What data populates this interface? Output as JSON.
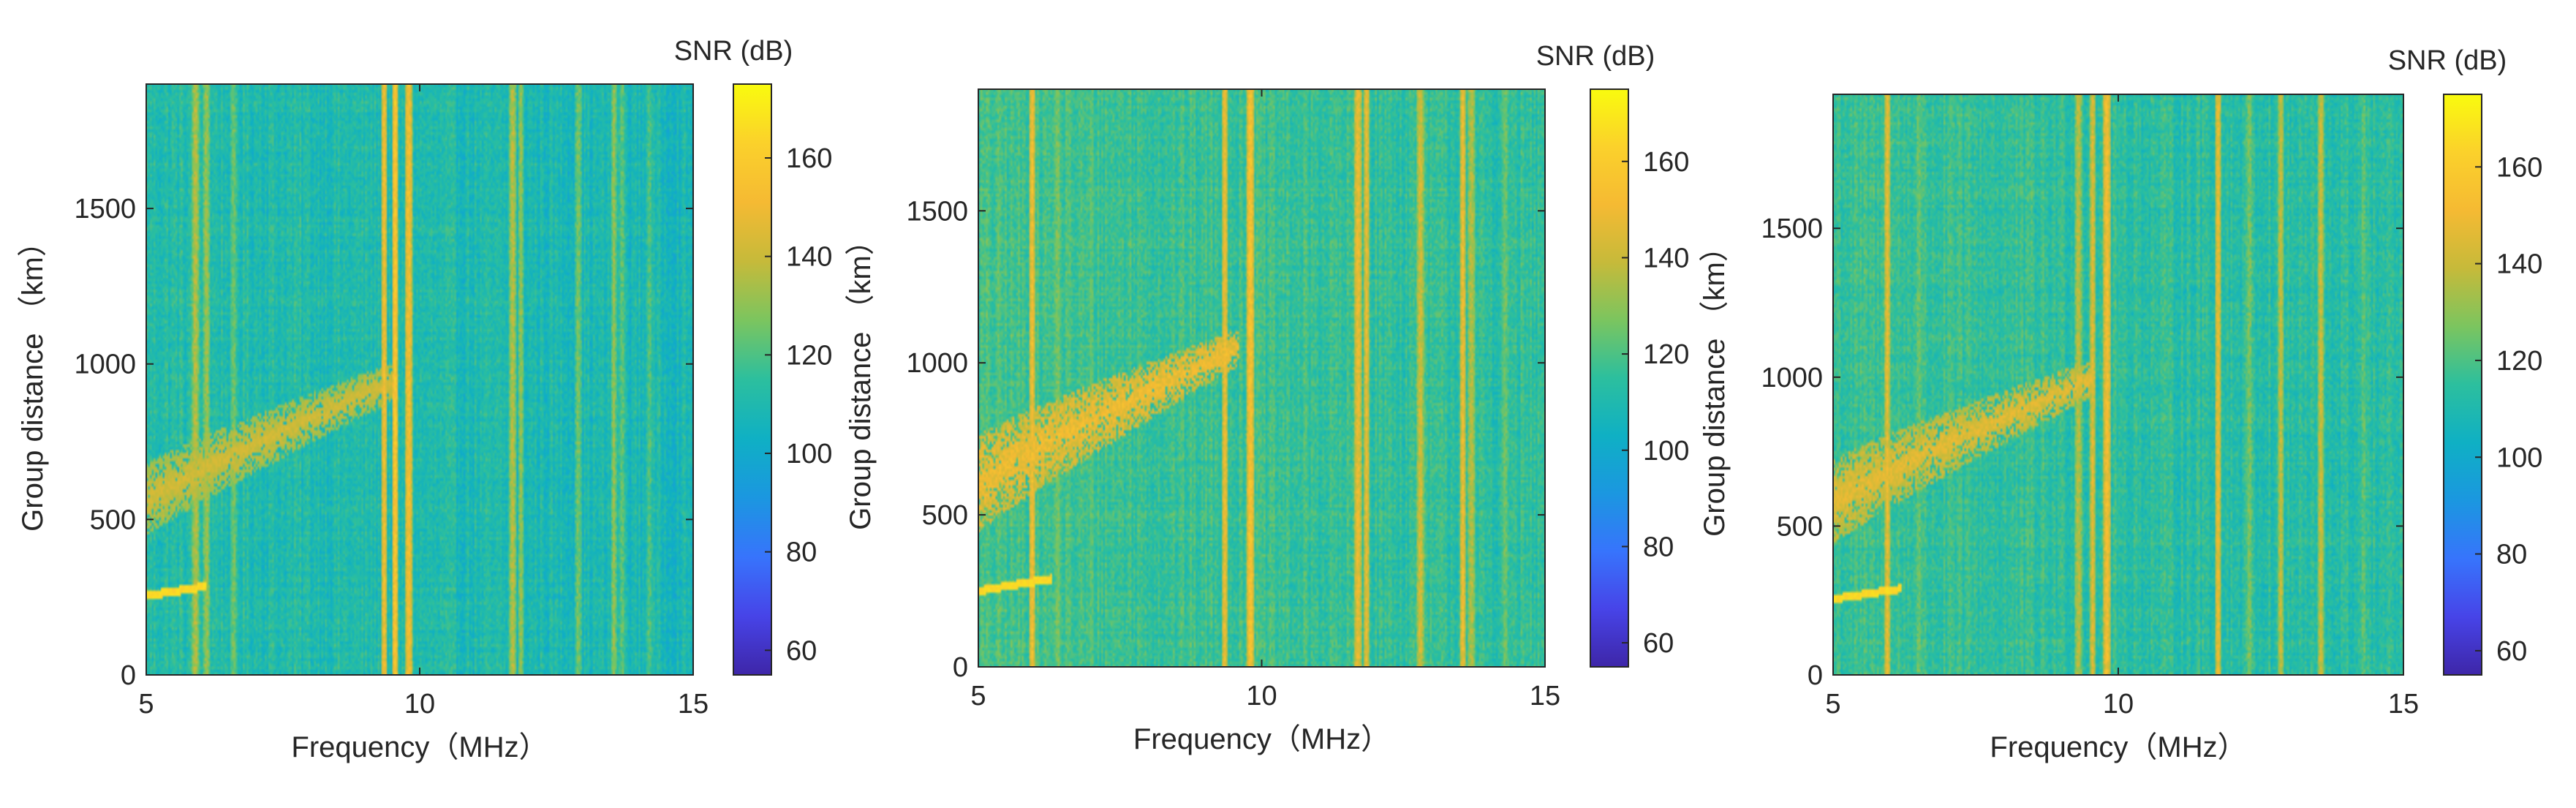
{
  "colormap": {
    "name": "parula",
    "stops": [
      "#3e26a8",
      "#4744e8",
      "#3774fc",
      "#1b97e0",
      "#0fb0c4",
      "#2cbf9e",
      "#7bc55f",
      "#c6ba3a",
      "#f5ba33",
      "#fbd12b",
      "#f9fb0e"
    ]
  },
  "chart_data": [
    {
      "type": "heatmap",
      "xlabel": "Frequency（MHz）",
      "ylabel": "Group distance （km）",
      "xlim": [
        5,
        15
      ],
      "ylim": [
        0,
        1900
      ],
      "xticks": [
        "5",
        "10",
        "15"
      ],
      "yticks": [
        "0",
        "500",
        "1000",
        "1500"
      ],
      "colorbar": {
        "label": "SNR (dB)",
        "range": [
          55,
          175
        ],
        "ticks": [
          "60",
          "80",
          "100",
          "120",
          "140",
          "160"
        ]
      },
      "background_snr": 108,
      "trace": {
        "freq_range": [
          5.0,
          9.6
        ],
        "distance_start": 560,
        "distance_end": 950,
        "snr": 142,
        "noise_level": 0.45
      },
      "low_trace": {
        "freq_range": [
          5.0,
          6.1
        ],
        "distance_start": 255,
        "distance_end": 285,
        "snr": 165
      },
      "interference_lines": [
        {
          "freq": 5.9,
          "snr": 140
        },
        {
          "freq": 6.1,
          "snr": 135
        },
        {
          "freq": 6.6,
          "snr": 128
        },
        {
          "freq": 9.35,
          "snr": 152
        },
        {
          "freq": 9.55,
          "snr": 158
        },
        {
          "freq": 9.8,
          "snr": 155
        },
        {
          "freq": 11.7,
          "snr": 140
        },
        {
          "freq": 11.85,
          "snr": 132
        },
        {
          "freq": 12.9,
          "snr": 130
        },
        {
          "freq": 13.55,
          "snr": 132
        },
        {
          "freq": 13.7,
          "snr": 126
        },
        {
          "freq": 14.2,
          "snr": 124
        }
      ]
    },
    {
      "type": "heatmap",
      "xlabel": "Frequency（MHz）",
      "ylabel": "Group distance （km）",
      "xlim": [
        5,
        15
      ],
      "ylim": [
        0,
        1900
      ],
      "xticks": [
        "5",
        "10",
        "15"
      ],
      "yticks": [
        "0",
        "500",
        "1000",
        "1500"
      ],
      "colorbar": {
        "label": "SNR (dB)",
        "range": [
          55,
          175
        ],
        "ticks": [
          "60",
          "80",
          "100",
          "120",
          "140",
          "160"
        ]
      },
      "background_snr": 114,
      "trace": {
        "freq_range": [
          5.0,
          9.6
        ],
        "distance_start": 600,
        "distance_end": 1050,
        "snr": 150,
        "noise_level": 0.8
      },
      "low_trace": {
        "freq_range": [
          5.0,
          6.3
        ],
        "distance_start": 250,
        "distance_end": 290,
        "snr": 165
      },
      "interference_lines": [
        {
          "freq": 5.95,
          "snr": 152
        },
        {
          "freq": 6.4,
          "snr": 130
        },
        {
          "freq": 7.0,
          "snr": 124
        },
        {
          "freq": 9.35,
          "snr": 150
        },
        {
          "freq": 9.8,
          "snr": 158
        },
        {
          "freq": 11.7,
          "snr": 152
        },
        {
          "freq": 11.85,
          "snr": 148
        },
        {
          "freq": 12.8,
          "snr": 145
        },
        {
          "freq": 13.55,
          "snr": 150
        },
        {
          "freq": 13.7,
          "snr": 140
        },
        {
          "freq": 14.3,
          "snr": 128
        }
      ]
    },
    {
      "type": "heatmap",
      "xlabel": "Frequency（MHz）",
      "ylabel": "Group distance （km）",
      "xlim": [
        5,
        15
      ],
      "ylim": [
        0,
        1950
      ],
      "xticks": [
        "5",
        "10",
        "15"
      ],
      "yticks": [
        "0",
        "500",
        "1000",
        "1500"
      ],
      "colorbar": {
        "label": "SNR (dB)",
        "range": [
          55,
          175
        ],
        "ticks": [
          "60",
          "80",
          "100",
          "120",
          "140",
          "160"
        ]
      },
      "background_snr": 112,
      "trace": {
        "freq_range": [
          5.0,
          9.6
        ],
        "distance_start": 580,
        "distance_end": 1000,
        "snr": 146,
        "noise_level": 0.65
      },
      "low_trace": {
        "freq_range": [
          5.0,
          6.2
        ],
        "distance_start": 255,
        "distance_end": 290,
        "snr": 165
      },
      "interference_lines": [
        {
          "freq": 5.95,
          "snr": 148
        },
        {
          "freq": 6.5,
          "snr": 128
        },
        {
          "freq": 9.3,
          "snr": 140
        },
        {
          "freq": 9.55,
          "snr": 145
        },
        {
          "freq": 9.8,
          "snr": 155
        },
        {
          "freq": 11.75,
          "snr": 148
        },
        {
          "freq": 12.3,
          "snr": 130
        },
        {
          "freq": 12.85,
          "snr": 140
        },
        {
          "freq": 13.55,
          "snr": 142
        },
        {
          "freq": 14.3,
          "snr": 126
        }
      ]
    }
  ]
}
